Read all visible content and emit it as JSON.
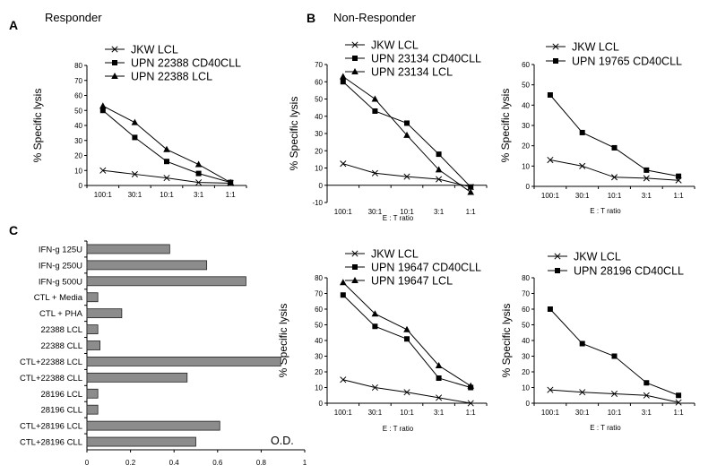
{
  "labels": {
    "panel_a": "A",
    "panel_b": "B",
    "panel_c": "C",
    "responder": "Responder",
    "non_responder": "Non-Responder"
  },
  "chart_data": [
    {
      "id": "a",
      "type": "line",
      "ylabel": "% Specific lysis",
      "xlabel": "",
      "categories": [
        "100:1",
        "30:1",
        "10:1",
        "3:1",
        "1:1"
      ],
      "ylim": [
        0,
        80
      ],
      "yticks": [
        0,
        10,
        20,
        30,
        40,
        50,
        60,
        70,
        80
      ],
      "series": [
        {
          "name": "JKW LCL",
          "marker": "x",
          "values": [
            10,
            7.5,
            5,
            2,
            1.5
          ]
        },
        {
          "name": "UPN 22388 CD40CLL",
          "marker": "square",
          "values": [
            50,
            32,
            16,
            8,
            2
          ]
        },
        {
          "name": "UPN 22388 LCL",
          "marker": "triangle",
          "values": [
            53,
            42,
            24,
            14,
            2
          ]
        }
      ]
    },
    {
      "id": "b1",
      "type": "line",
      "ylabel": "% Specific lysis",
      "xlabel": "E : T ratio",
      "categories": [
        "100:1",
        "30:1",
        "10:1",
        "3:1",
        "1:1"
      ],
      "ylim": [
        -10,
        70
      ],
      "yticks": [
        -10,
        0,
        10,
        20,
        30,
        40,
        50,
        60,
        70
      ],
      "series": [
        {
          "name": "JKW LCL",
          "marker": "x",
          "values": [
            12.5,
            7,
            5,
            3.5,
            -1
          ]
        },
        {
          "name": "UPN 23134 CD40CLL",
          "marker": "square",
          "values": [
            60,
            43,
            36,
            18,
            -1
          ]
        },
        {
          "name": "UPN 23134 LCL",
          "marker": "triangle",
          "values": [
            63,
            50,
            29,
            9,
            -4
          ]
        }
      ]
    },
    {
      "id": "b2",
      "type": "line",
      "ylabel": "% Specific lysis",
      "xlabel": "E : T ratio",
      "categories": [
        "100:1",
        "30:1",
        "10:1",
        "3:1",
        "1:1"
      ],
      "ylim": [
        0,
        60
      ],
      "yticks": [
        0,
        10,
        20,
        30,
        40,
        50,
        60
      ],
      "series": [
        {
          "name": "JKW LCL",
          "marker": "x",
          "values": [
            13,
            10,
            4.5,
            4,
            3
          ]
        },
        {
          "name": "UPN 19765 CD40CLL",
          "marker": "square",
          "values": [
            45,
            26.5,
            19,
            8,
            5
          ]
        }
      ]
    },
    {
      "id": "b3",
      "type": "line",
      "ylabel": "% Specific lysis",
      "xlabel": "E : T ratio",
      "categories": [
        "100:1",
        "30:1",
        "10:1",
        "3:1",
        "1:1"
      ],
      "ylim": [
        0,
        80
      ],
      "yticks": [
        0,
        10,
        20,
        30,
        40,
        50,
        60,
        70,
        80
      ],
      "series": [
        {
          "name": "JKW LCL",
          "marker": "x",
          "values": [
            15,
            10,
            7,
            3.5,
            0
          ]
        },
        {
          "name": "UPN 19647 CD40CLL",
          "marker": "square",
          "values": [
            69,
            49,
            41,
            16,
            10
          ]
        },
        {
          "name": "UPN 19647 LCL",
          "marker": "triangle",
          "values": [
            77,
            57,
            47,
            24,
            11
          ]
        }
      ]
    },
    {
      "id": "b4",
      "type": "line",
      "ylabel": "% Specific lysis",
      "xlabel": "E : T ratio",
      "categories": [
        "100:1",
        "30:1",
        "10:1",
        "3:1",
        "1:1"
      ],
      "ylim": [
        0,
        80
      ],
      "yticks": [
        0,
        10,
        20,
        30,
        40,
        50,
        60,
        70,
        80
      ],
      "series": [
        {
          "name": "JKW LCL",
          "marker": "x",
          "values": [
            8.5,
            7,
            6,
            5,
            0.5
          ]
        },
        {
          "name": "UPN 28196 CD40CLL",
          "marker": "square",
          "values": [
            60,
            38,
            30,
            13,
            5
          ]
        }
      ]
    },
    {
      "id": "c",
      "type": "bar",
      "orientation": "horizontal",
      "annotation": "O.D.",
      "xlim": [
        0,
        1
      ],
      "xticks": [
        0,
        0.2,
        0.4,
        0.6,
        0.8,
        1
      ],
      "xtick_labels": [
        "0",
        "0.2",
        "0.4",
        "0.6",
        "0.8",
        "1"
      ],
      "categories": [
        "IFN-g 125U",
        "IFN-g 250U",
        "IFN-g 500U",
        "CTL + Media",
        "CTL + PHA",
        "22388 LCL",
        "22388 CLL",
        "CTL+22388 LCL",
        "CTL+22388 CLL",
        "28196 LCL",
        "28196 CLL",
        "CTL+28196 LCL",
        "CTL+28196 CLL"
      ],
      "values": [
        0.38,
        0.55,
        0.73,
        0.05,
        0.16,
        0.05,
        0.06,
        0.89,
        0.46,
        0.05,
        0.05,
        0.61,
        0.5
      ]
    }
  ]
}
